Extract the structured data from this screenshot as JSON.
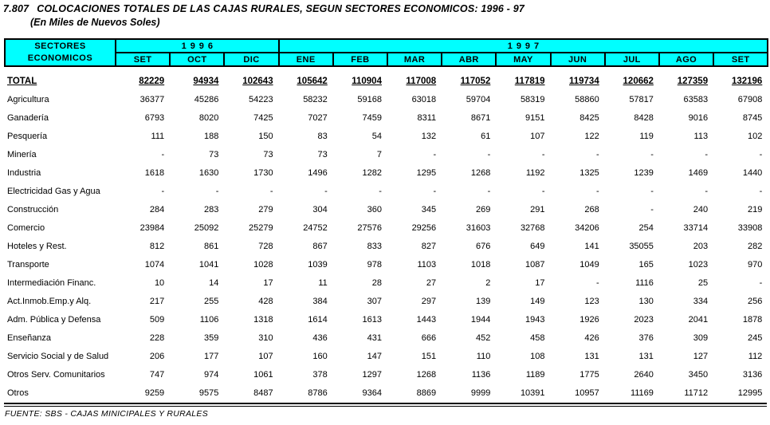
{
  "page": {
    "title_number": "7.807",
    "title": "COLOCACIONES TOTALES DE LAS CAJAS RURALES, SEGUN SECTORES ECONOMICOS: 1996 - 97",
    "subtitle": "(En Miles de Nuevos Soles)",
    "source": "FUENTE: SBS - CAJAS MINICIPALES Y RURALES"
  },
  "colors": {
    "header_bg": "#00ffff",
    "header_text": "#000000",
    "border": "#000000"
  },
  "table": {
    "corner": {
      "line1": "SECTORES",
      "line2": "ECONOMICOS"
    },
    "year_groups": [
      {
        "label": "1996",
        "colspan": 3
      },
      {
        "label": "1997",
        "colspan": 9
      }
    ],
    "months": [
      "SET",
      "OCT",
      "DIC",
      "ENE",
      "FEB",
      "MAR",
      "ABR",
      "MAY",
      "JUN",
      "JUL",
      "AGO",
      "SET"
    ],
    "total": {
      "label": "TOTAL",
      "values": [
        "82229",
        "94934",
        "102643",
        "105642",
        "110904",
        "117008",
        "117052",
        "117819",
        "119734",
        "120662",
        "127359",
        "132196"
      ]
    },
    "rows": [
      {
        "label": "Agricultura",
        "values": [
          "36377",
          "45286",
          "54223",
          "58232",
          "59168",
          "63018",
          "59704",
          "58319",
          "58860",
          "57817",
          "63583",
          "67908"
        ]
      },
      {
        "label": "Ganadería",
        "values": [
          "6793",
          "8020",
          "7425",
          "7027",
          "7459",
          "8311",
          "8671",
          "9151",
          "8425",
          "8428",
          "9016",
          "8745"
        ]
      },
      {
        "label": "Pesquería",
        "values": [
          "111",
          "188",
          "150",
          "83",
          "54",
          "132",
          "61",
          "107",
          "122",
          "119",
          "113",
          "102"
        ]
      },
      {
        "label": "Minería",
        "values": [
          "-",
          "73",
          "73",
          "73",
          "7",
          "-",
          "-",
          "-",
          "-",
          "-",
          "-",
          "-"
        ]
      },
      {
        "label": "Industria",
        "values": [
          "1618",
          "1630",
          "1730",
          "1496",
          "1282",
          "1295",
          "1268",
          "1192",
          "1325",
          "1239",
          "1469",
          "1440"
        ]
      },
      {
        "label": "Electricidad Gas y Agua",
        "values": [
          "-",
          "-",
          "-",
          "-",
          "-",
          "-",
          "-",
          "-",
          "-",
          "-",
          "-",
          "-"
        ]
      },
      {
        "label": "Construcción",
        "values": [
          "284",
          "283",
          "279",
          "304",
          "360",
          "345",
          "269",
          "291",
          "268",
          "-",
          "240",
          "219"
        ]
      },
      {
        "label": "Comercio",
        "values": [
          "23984",
          "25092",
          "25279",
          "24752",
          "27576",
          "29256",
          "31603",
          "32768",
          "34206",
          "254",
          "33714",
          "33908"
        ]
      },
      {
        "label": "Hoteles y Rest.",
        "values": [
          "812",
          "861",
          "728",
          "867",
          "833",
          "827",
          "676",
          "649",
          "141",
          "35055",
          "203",
          "282"
        ]
      },
      {
        "label": "Transporte",
        "values": [
          "1074",
          "1041",
          "1028",
          "1039",
          "978",
          "1103",
          "1018",
          "1087",
          "1049",
          "165",
          "1023",
          "970"
        ]
      },
      {
        "label": "Intermediación Financ.",
        "values": [
          "10",
          "14",
          "17",
          "11",
          "28",
          "27",
          "2",
          "17",
          "-",
          "1116",
          "25",
          "-"
        ]
      },
      {
        "label": "Act.Inmob.Emp.y Alq.",
        "values": [
          "217",
          "255",
          "428",
          "384",
          "307",
          "297",
          "139",
          "149",
          "123",
          "130",
          "334",
          "256"
        ]
      },
      {
        "label": "Adm. Pública y Defensa",
        "values": [
          "509",
          "1106",
          "1318",
          "1614",
          "1613",
          "1443",
          "1944",
          "1943",
          "1926",
          "2023",
          "2041",
          "1878"
        ]
      },
      {
        "label": "Enseñanza",
        "values": [
          "228",
          "359",
          "310",
          "436",
          "431",
          "666",
          "452",
          "458",
          "426",
          "376",
          "309",
          "245"
        ]
      },
      {
        "label": "Servicio Social y de Salud",
        "values": [
          "206",
          "177",
          "107",
          "160",
          "147",
          "151",
          "110",
          "108",
          "131",
          "131",
          "127",
          "112"
        ]
      },
      {
        "label": "Otros Serv. Comunitarios",
        "values": [
          "747",
          "974",
          "1061",
          "378",
          "1297",
          "1268",
          "1136",
          "1189",
          "1775",
          "2640",
          "3450",
          "3136"
        ]
      },
      {
        "label": "Otros",
        "values": [
          "9259",
          "9575",
          "8487",
          "8786",
          "9364",
          "8869",
          "9999",
          "10391",
          "10957",
          "11169",
          "11712",
          "12995"
        ]
      }
    ]
  }
}
